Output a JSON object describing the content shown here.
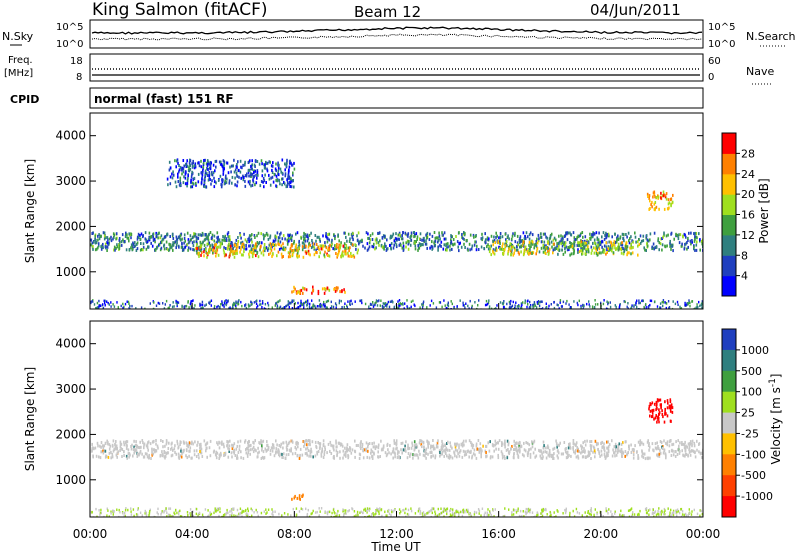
{
  "header": {
    "title_left": "King Salmon (fitACF)",
    "title_center": "Beam 12",
    "title_right": "04/Jun/2011"
  },
  "top_panels": {
    "nsky_label": "N.Sky",
    "nsky_axis_top": "10^5",
    "nsky_axis_bottom": "10^0",
    "nsearch_label": "N.Search",
    "freq_label_1": "Freq.",
    "freq_label_2": "[MHz]",
    "freq_axis_top": "18",
    "freq_axis_bottom": "8",
    "nave_axis_top": "60",
    "nave_axis_bottom": "0",
    "nave_label": "Nave",
    "cpid_label": "CPID",
    "cpid_text": "normal (fast) 151 RF"
  },
  "chart_data": [
    {
      "type": "heatmap",
      "panel": "power",
      "title": "",
      "xlabel": "",
      "ylabel": "Slant Range [km]",
      "xlim": [
        "00:00",
        "24:00"
      ],
      "ylim": [
        180,
        4500
      ],
      "yticks": [
        1000,
        2000,
        3000,
        4000
      ],
      "colorbar": {
        "label": "Power [dB]",
        "ticks": [
          4,
          8,
          12,
          16,
          20,
          24,
          28
        ],
        "colors": [
          "#0000ff",
          "#1f3fbf",
          "#2f7f7f",
          "#3f9f3f",
          "#9fdf1f",
          "#ffc000",
          "#ff8000",
          "#ff0000"
        ]
      },
      "regions": [
        {
          "t0": 0.0,
          "t1": 24.0,
          "r0": 1500,
          "r1": 1900,
          "level": 10
        },
        {
          "t0": 4.0,
          "t1": 10.5,
          "r0": 1350,
          "r1": 1650,
          "level": 22
        },
        {
          "t0": 15.5,
          "t1": 21.5,
          "r0": 1400,
          "r1": 1700,
          "level": 18
        },
        {
          "t0": 7.8,
          "t1": 10.0,
          "r0": 550,
          "r1": 700,
          "level": 26
        },
        {
          "t0": 21.8,
          "t1": 22.8,
          "r0": 2400,
          "r1": 2800,
          "level": 24
        },
        {
          "t0": 3.0,
          "t1": 8.0,
          "r0": 2900,
          "r1": 3500,
          "level": 6
        }
      ]
    },
    {
      "type": "heatmap",
      "panel": "velocity",
      "title": "",
      "xlabel": "Time UT",
      "ylabel": "Slant Range [km]",
      "xlim": [
        "00:00",
        "24:00"
      ],
      "ylim": [
        180,
        4500
      ],
      "yticks": [
        1000,
        2000,
        3000,
        4000
      ],
      "xticks": [
        "00:00",
        "04:00",
        "08:00",
        "12:00",
        "16:00",
        "20:00",
        "00:00"
      ],
      "colorbar": {
        "label": "Velocity [m s^-1]",
        "ticks": [
          1000,
          500,
          100,
          25,
          -25,
          -100,
          -500,
          -1000
        ],
        "colors": [
          "#1f3fbf",
          "#2f7f7f",
          "#3f9f3f",
          "#9fdf1f",
          "#c8c8c8",
          "#ffc000",
          "#ff8000",
          "#ff4000",
          "#ff0000"
        ]
      },
      "regions": [
        {
          "t0": 0.0,
          "t1": 24.0,
          "r0": 1500,
          "r1": 1900,
          "value": 0
        },
        {
          "t0": 21.8,
          "t1": 22.8,
          "r0": 2300,
          "r1": 2800,
          "value": -700
        },
        {
          "t0": 7.8,
          "t1": 8.5,
          "r0": 600,
          "r1": 700,
          "value": -300
        }
      ]
    }
  ]
}
